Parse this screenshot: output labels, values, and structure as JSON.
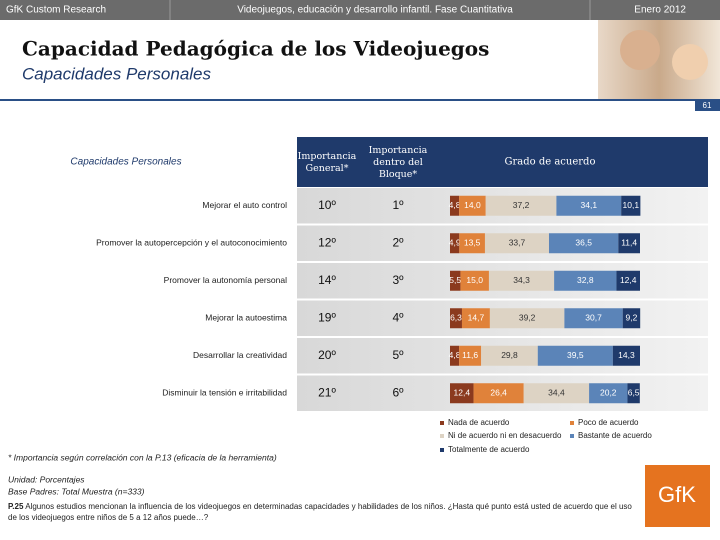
{
  "header": {
    "left": "GfK Custom Research",
    "center": "Videojuegos, educación y desarrollo infantil. Fase Cuantitativa",
    "right": "Enero 2012"
  },
  "title": "Capacidad Pedagógica de los Videojuegos",
  "subtitle": "Capacidades Personales",
  "page_number": "61",
  "table": {
    "headers": [
      "Capacidades Personales",
      "Importancia General*",
      "Importancia dentro del Bloque*",
      "Grado de acuerdo"
    ],
    "general": [
      "10º",
      "12º",
      "14º",
      "19º",
      "20º",
      "21º"
    ],
    "bloque": [
      "1º",
      "2º",
      "3º",
      "4º",
      "5º",
      "6º"
    ]
  },
  "chart_data": {
    "type": "bar",
    "stacked": true,
    "categories": [
      "Mejorar el auto control",
      "Promover la autopercepción y el autoconocimiento",
      "Promover la autonomía personal",
      "Mejorar la autoestima",
      "Desarrollar la creatividad",
      "Disminuir la tensión e irritabilidad"
    ],
    "xlim": [
      0,
      100
    ],
    "series": [
      {
        "name": "Nada de acuerdo",
        "color": "#8b3a1e",
        "values": [
          4.8,
          4.9,
          5.5,
          6.3,
          4.8,
          12.4
        ],
        "value_labels": [
          "4,8",
          "4,9",
          "5,5",
          "6,3",
          "4,8",
          "12,4"
        ]
      },
      {
        "name": "Poco de acuerdo",
        "color": "#e0823a",
        "values": [
          14.0,
          13.5,
          15.0,
          14.7,
          11.6,
          26.4
        ],
        "value_labels": [
          "14,0",
          "13,5",
          "15,0",
          "14,7",
          "11,6",
          "26,4"
        ]
      },
      {
        "name": "Ni de acuerdo ni en desacuerdo",
        "color": "#ddd3c4",
        "values": [
          37.2,
          33.7,
          34.3,
          39.2,
          29.8,
          34.4
        ],
        "value_labels": [
          "37,2",
          "33,7",
          "34,3",
          "39,2",
          "29,8",
          "34,4"
        ]
      },
      {
        "name": "Bastante de acuerdo",
        "color": "#5b84b8",
        "values": [
          34.1,
          36.5,
          32.8,
          30.7,
          39.5,
          20.2
        ],
        "value_labels": [
          "34,1",
          "36,5",
          "32,8",
          "30,7",
          "39,5",
          "20,2"
        ]
      },
      {
        "name": "Totalmente de acuerdo",
        "color": "#1f3a6b",
        "values": [
          10.1,
          11.4,
          12.4,
          9.2,
          14.3,
          6.5
        ],
        "value_labels": [
          "10,1",
          "11,4",
          "12,4",
          "9,2",
          "14,3",
          "6,5"
        ]
      }
    ]
  },
  "footnote": "* Importancia según correlación con la P.13 (eficacia de la herramienta)",
  "notes": [
    "Unidad: Porcentajes",
    "Base Padres: Total Muestra (n=333)"
  ],
  "question": {
    "label": "P.25",
    "text": "Algunos estudios mencionan la influencia de los videojuegos en determinadas capacidades y habilidades de los niños. ¿Hasta qué punto está usted de acuerdo que el uso de los videojuegos entre niños de 5 a 12 años puede…?"
  },
  "logo": "GfK"
}
